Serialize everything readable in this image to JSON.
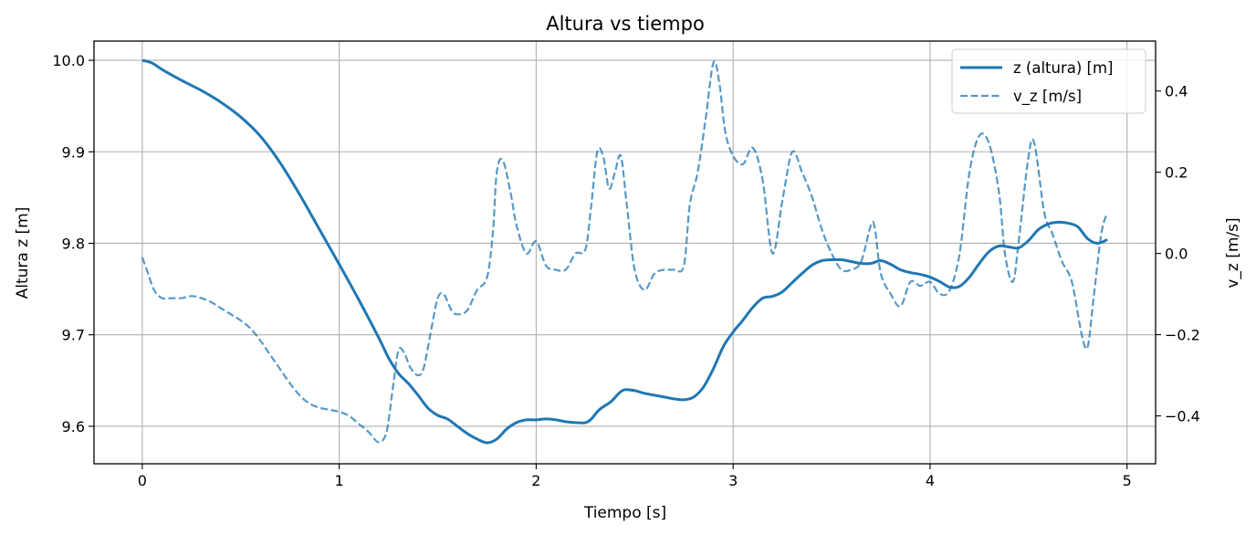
{
  "chart_data": {
    "type": "line",
    "title": "Altura vs tiempo",
    "xlabel": "Tiempo [s]",
    "ylabel_left": "Altura z [m]",
    "ylabel_right": "v_z [m/s]",
    "xlim": [
      -0.245,
      5.145
    ],
    "ylim_left": [
      9.559,
      10.021
    ],
    "ylim_right": [
      -0.518,
      0.523
    ],
    "x_ticks": [
      0,
      1,
      2,
      3,
      4,
      5
    ],
    "y_ticks_left": [
      9.6,
      9.7,
      9.8,
      9.9,
      10.0
    ],
    "y_ticks_left_labels": [
      "9.6",
      "9.7",
      "9.8",
      "9.9",
      "10.0"
    ],
    "y_ticks_right": [
      -0.4,
      -0.2,
      0.0,
      0.2,
      0.4
    ],
    "y_ticks_right_labels": [
      "−0.4",
      "−0.2",
      "0.0",
      "0.2",
      "0.4"
    ],
    "grid": true,
    "legend_position": "top-right",
    "series": [
      {
        "name": "z (altura) [m]",
        "axis": "left",
        "style": "solid",
        "color": "#1f77b4",
        "points": [
          [
            0,
            10.0
          ],
          [
            0.05,
            9.997
          ],
          [
            0.1,
            9.99
          ],
          [
            0.2,
            9.978
          ],
          [
            0.3,
            9.967
          ],
          [
            0.4,
            9.954
          ],
          [
            0.5,
            9.938
          ],
          [
            0.6,
            9.917
          ],
          [
            0.7,
            9.888
          ],
          [
            0.8,
            9.853
          ],
          [
            0.9,
            9.815
          ],
          [
            1.0,
            9.777
          ],
          [
            1.1,
            9.738
          ],
          [
            1.2,
            9.697
          ],
          [
            1.25,
            9.675
          ],
          [
            1.3,
            9.658
          ],
          [
            1.35,
            9.647
          ],
          [
            1.4,
            9.634
          ],
          [
            1.45,
            9.62
          ],
          [
            1.5,
            9.612
          ],
          [
            1.55,
            9.608
          ],
          [
            1.6,
            9.6
          ],
          [
            1.65,
            9.592
          ],
          [
            1.7,
            9.586
          ],
          [
            1.75,
            9.582
          ],
          [
            1.8,
            9.586
          ],
          [
            1.85,
            9.597
          ],
          [
            1.9,
            9.604
          ],
          [
            1.95,
            9.607
          ],
          [
            2.0,
            9.607
          ],
          [
            2.05,
            9.608
          ],
          [
            2.1,
            9.607
          ],
          [
            2.15,
            9.605
          ],
          [
            2.2,
            9.604
          ],
          [
            2.25,
            9.604
          ],
          [
            2.28,
            9.608
          ],
          [
            2.32,
            9.618
          ],
          [
            2.38,
            9.627
          ],
          [
            2.42,
            9.636
          ],
          [
            2.45,
            9.64
          ],
          [
            2.5,
            9.639
          ],
          [
            2.55,
            9.636
          ],
          [
            2.6,
            9.634
          ],
          [
            2.65,
            9.632
          ],
          [
            2.7,
            9.63
          ],
          [
            2.75,
            9.629
          ],
          [
            2.8,
            9.632
          ],
          [
            2.85,
            9.643
          ],
          [
            2.9,
            9.663
          ],
          [
            2.95,
            9.687
          ],
          [
            3.0,
            9.703
          ],
          [
            3.05,
            9.716
          ],
          [
            3.1,
            9.73
          ],
          [
            3.15,
            9.74
          ],
          [
            3.2,
            9.742
          ],
          [
            3.25,
            9.747
          ],
          [
            3.3,
            9.757
          ],
          [
            3.35,
            9.767
          ],
          [
            3.4,
            9.776
          ],
          [
            3.45,
            9.781
          ],
          [
            3.5,
            9.782
          ],
          [
            3.55,
            9.782
          ],
          [
            3.6,
            9.78
          ],
          [
            3.65,
            9.778
          ],
          [
            3.7,
            9.778
          ],
          [
            3.75,
            9.781
          ],
          [
            3.8,
            9.777
          ],
          [
            3.85,
            9.771
          ],
          [
            3.9,
            9.768
          ],
          [
            3.95,
            9.766
          ],
          [
            4.0,
            9.763
          ],
          [
            4.05,
            9.758
          ],
          [
            4.1,
            9.752
          ],
          [
            4.15,
            9.753
          ],
          [
            4.2,
            9.763
          ],
          [
            4.25,
            9.778
          ],
          [
            4.3,
            9.791
          ],
          [
            4.35,
            9.797
          ],
          [
            4.4,
            9.796
          ],
          [
            4.45,
            9.795
          ],
          [
            4.5,
            9.803
          ],
          [
            4.55,
            9.815
          ],
          [
            4.6,
            9.821
          ],
          [
            4.65,
            9.823
          ],
          [
            4.7,
            9.822
          ],
          [
            4.75,
            9.818
          ],
          [
            4.8,
            9.805
          ],
          [
            4.85,
            9.8
          ],
          [
            4.9,
            9.804
          ]
        ]
      },
      {
        "name": "v_z [m/s]",
        "axis": "right",
        "style": "dashed",
        "color": "#1f77b4",
        "opacity": 0.75,
        "points": [
          [
            0,
            -0.01
          ],
          [
            0.03,
            -0.05
          ],
          [
            0.06,
            -0.09
          ],
          [
            0.1,
            -0.11
          ],
          [
            0.15,
            -0.11
          ],
          [
            0.2,
            -0.11
          ],
          [
            0.25,
            -0.105
          ],
          [
            0.3,
            -0.11
          ],
          [
            0.35,
            -0.12
          ],
          [
            0.4,
            -0.135
          ],
          [
            0.45,
            -0.15
          ],
          [
            0.5,
            -0.165
          ],
          [
            0.55,
            -0.185
          ],
          [
            0.6,
            -0.215
          ],
          [
            0.65,
            -0.25
          ],
          [
            0.7,
            -0.285
          ],
          [
            0.75,
            -0.32
          ],
          [
            0.8,
            -0.35
          ],
          [
            0.85,
            -0.37
          ],
          [
            0.9,
            -0.38
          ],
          [
            0.95,
            -0.385
          ],
          [
            1.0,
            -0.39
          ],
          [
            1.05,
            -0.4
          ],
          [
            1.1,
            -0.42
          ],
          [
            1.15,
            -0.44
          ],
          [
            1.2,
            -0.465
          ],
          [
            1.24,
            -0.44
          ],
          [
            1.27,
            -0.34
          ],
          [
            1.3,
            -0.24
          ],
          [
            1.33,
            -0.245
          ],
          [
            1.36,
            -0.28
          ],
          [
            1.4,
            -0.3
          ],
          [
            1.43,
            -0.28
          ],
          [
            1.47,
            -0.18
          ],
          [
            1.5,
            -0.11
          ],
          [
            1.53,
            -0.1
          ],
          [
            1.57,
            -0.14
          ],
          [
            1.6,
            -0.15
          ],
          [
            1.65,
            -0.14
          ],
          [
            1.7,
            -0.09
          ],
          [
            1.75,
            -0.06
          ],
          [
            1.78,
            0.05
          ],
          [
            1.8,
            0.2
          ],
          [
            1.83,
            0.23
          ],
          [
            1.87,
            0.15
          ],
          [
            1.9,
            0.07
          ],
          [
            1.95,
            0.0
          ],
          [
            2.0,
            0.03
          ],
          [
            2.05,
            -0.03
          ],
          [
            2.1,
            -0.04
          ],
          [
            2.15,
            -0.04
          ],
          [
            2.2,
            -0.0
          ],
          [
            2.25,
            0.01
          ],
          [
            2.28,
            0.12
          ],
          [
            2.31,
            0.25
          ],
          [
            2.34,
            0.24
          ],
          [
            2.37,
            0.16
          ],
          [
            2.4,
            0.2
          ],
          [
            2.43,
            0.24
          ],
          [
            2.46,
            0.12
          ],
          [
            2.5,
            -0.04
          ],
          [
            2.55,
            -0.09
          ],
          [
            2.6,
            -0.05
          ],
          [
            2.65,
            -0.04
          ],
          [
            2.7,
            -0.04
          ],
          [
            2.75,
            -0.03
          ],
          [
            2.78,
            0.12
          ],
          [
            2.82,
            0.2
          ],
          [
            2.86,
            0.33
          ],
          [
            2.9,
            0.47
          ],
          [
            2.93,
            0.42
          ],
          [
            2.96,
            0.3
          ],
          [
            3.0,
            0.24
          ],
          [
            3.05,
            0.22
          ],
          [
            3.1,
            0.26
          ],
          [
            3.15,
            0.18
          ],
          [
            3.2,
            0.0
          ],
          [
            3.25,
            0.13
          ],
          [
            3.3,
            0.25
          ],
          [
            3.35,
            0.2
          ],
          [
            3.4,
            0.14
          ],
          [
            3.45,
            0.06
          ],
          [
            3.5,
            0.0
          ],
          [
            3.55,
            -0.04
          ],
          [
            3.6,
            -0.04
          ],
          [
            3.65,
            -0.02
          ],
          [
            3.7,
            0.07
          ],
          [
            3.72,
            0.06
          ],
          [
            3.75,
            -0.05
          ],
          [
            3.8,
            -0.1
          ],
          [
            3.85,
            -0.13
          ],
          [
            3.9,
            -0.07
          ],
          [
            3.95,
            -0.08
          ],
          [
            4.0,
            -0.07
          ],
          [
            4.05,
            -0.1
          ],
          [
            4.1,
            -0.09
          ],
          [
            4.15,
            0.0
          ],
          [
            4.2,
            0.2
          ],
          [
            4.25,
            0.29
          ],
          [
            4.3,
            0.27
          ],
          [
            4.35,
            0.15
          ],
          [
            4.38,
            0.0
          ],
          [
            4.42,
            -0.07
          ],
          [
            4.45,
            0.03
          ],
          [
            4.5,
            0.24
          ],
          [
            4.53,
            0.27
          ],
          [
            4.58,
            0.1
          ],
          [
            4.62,
            0.05
          ],
          [
            4.67,
            -0.02
          ],
          [
            4.72,
            -0.07
          ],
          [
            4.77,
            -0.2
          ],
          [
            4.8,
            -0.23
          ],
          [
            4.83,
            -0.11
          ],
          [
            4.87,
            0.05
          ],
          [
            4.9,
            0.1
          ]
        ]
      }
    ]
  }
}
